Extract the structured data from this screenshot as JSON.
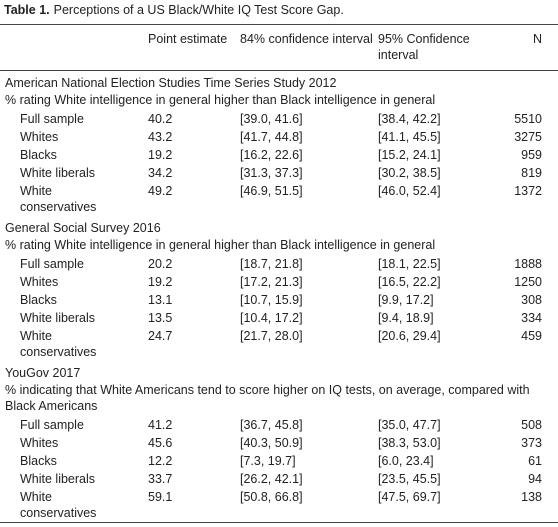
{
  "table": {
    "label": "Table 1.",
    "title": "Perceptions of a US Black/White IQ Test Score Gap.",
    "columns": [
      "Point estimate",
      "84% confidence interval",
      "95% Confidence interval",
      "N"
    ],
    "sections": [
      {
        "title": "American National Election Studies Time Series Study 2012",
        "description": "% rating White intelligence in general higher than Black intelligence in general",
        "rows": [
          [
            "Full sample",
            40.2,
            "[39.0, 41.6]",
            "[38.4, 42.2]",
            5510
          ],
          [
            "Whites",
            43.2,
            "[41.7, 44.8]",
            "[41.1, 45.5]",
            3275
          ],
          [
            "Blacks",
            19.2,
            "[16.2, 22.6]",
            "[15.2, 24.1]",
            959
          ],
          [
            "White liberals",
            34.2,
            "[31.3, 37.3]",
            "[30.2, 38.5]",
            819
          ],
          [
            "White conservatives",
            49.2,
            "[46.9, 51.5]",
            "[46.0, 52.4]",
            1372
          ]
        ]
      },
      {
        "title": "General Social Survey 2016",
        "description": "% rating White intelligence in general higher than Black intelligence in general",
        "rows": [
          [
            "Full sample",
            20.2,
            "[18.7, 21.8]",
            "[18.1, 22.5]",
            1888
          ],
          [
            "Whites",
            19.2,
            "[17.2, 21.3]",
            "[16.5, 22.2]",
            1250
          ],
          [
            "Blacks",
            13.1,
            "[10.7, 15.9]",
            "[9.9, 17.2]",
            308
          ],
          [
            "White liberals",
            13.5,
            "[10.4, 17.2]",
            "[9.4, 18.9]",
            334
          ],
          [
            "White conservatives",
            24.7,
            "[21.7, 28.0]",
            "[20.6, 29.4]",
            459
          ]
        ]
      },
      {
        "title": "YouGov 2017",
        "description": "% indicating that White Americans tend to score higher on IQ tests, on average, compared with Black Americans",
        "rows": [
          [
            "Full sample",
            41.2,
            "[36.7, 45.8]",
            "[35.0, 47.7]",
            508
          ],
          [
            "Whites",
            45.6,
            "[40.3, 50.9]",
            "[38.3, 53.0]",
            373
          ],
          [
            "Blacks",
            12.2,
            "[7.3, 19.7]",
            "[6.0, 23.4]",
            61
          ],
          [
            "White liberals",
            33.7,
            "[26.2, 42.1]",
            "[23.5, 45.5]",
            94
          ],
          [
            "White conservatives",
            59.1,
            "[50.8, 66.8]",
            "[47.5, 69.7]",
            138
          ]
        ]
      }
    ]
  }
}
